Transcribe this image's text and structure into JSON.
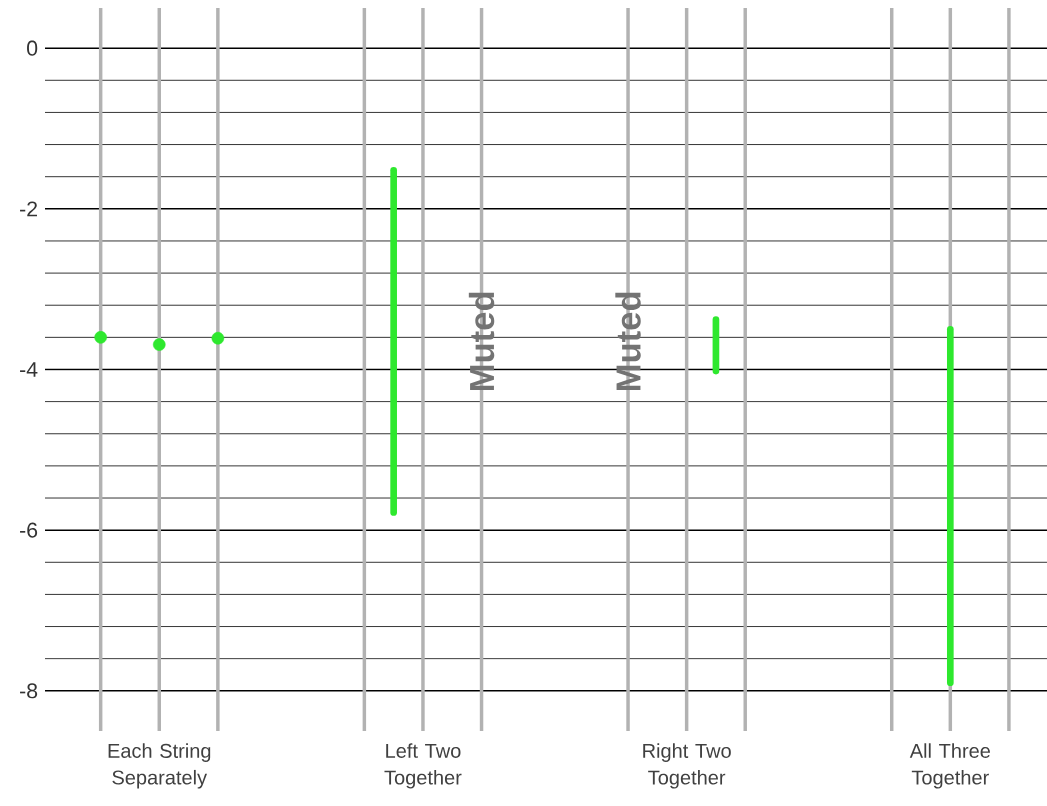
{
  "chart_data": {
    "type": "bar",
    "categories": [
      null,
      null,
      "Each String Separately",
      null,
      null,
      null,
      null,
      null,
      null,
      null,
      null,
      "Left Two Together",
      null,
      null,
      null,
      null,
      null,
      null,
      null,
      null,
      "Right Two Together",
      null,
      null,
      null,
      null,
      null,
      null,
      null,
      null,
      "All Three Together",
      null,
      null
    ],
    "ylim": [
      -8.5,
      0.5
    ],
    "yticks": [
      0,
      {
        "value": -0.4,
        "label": null
      },
      {
        "value": -0.8,
        "label": null
      },
      {
        "value": -1.2,
        "label": null
      },
      {
        "value": -1.6,
        "label": null
      },
      -2,
      {
        "value": -2.4,
        "label": null
      },
      {
        "value": -2.8,
        "label": null
      },
      {
        "value": -3.2,
        "label": null
      },
      {
        "value": -3.6,
        "label": null
      },
      -4,
      {
        "value": -4.4,
        "label": null
      },
      {
        "value": -4.8,
        "label": null
      },
      {
        "value": -5.2,
        "label": null
      },
      {
        "value": -5.6,
        "label": null
      },
      -6,
      {
        "value": -6.4,
        "label": null
      },
      {
        "value": -6.8,
        "label": null
      },
      {
        "value": -7.2,
        "label": null
      },
      {
        "value": -7.6,
        "label": null
      },
      -8
    ],
    "grid": true,
    "series": [
      {
        "type": "scatter",
        "color": "#2ee82e",
        "marker": "circle",
        "values": [
          -3.6,
          null,
          -3.69,
          null,
          -3.61,
          null,
          null,
          null,
          null,
          null,
          null,
          null,
          null,
          null,
          null,
          null,
          null,
          null,
          null,
          null,
          null,
          null,
          null,
          null,
          null,
          null,
          null,
          null,
          null,
          null,
          null,
          null
        ]
      },
      {
        "color": "#2ee82e",
        "values": [
          null,
          null,
          null,
          null,
          null,
          null,
          null,
          null,
          null,
          null,
          4.26,
          null,
          null,
          null,
          null,
          null,
          null,
          null,
          null,
          null,
          null,
          0.64,
          null,
          null,
          null,
          null,
          null,
          null,
          null,
          4.4,
          null,
          null
        ],
        "base": [
          null,
          null,
          null,
          null,
          null,
          null,
          null,
          null,
          null,
          null,
          -5.78,
          null,
          null,
          null,
          null,
          null,
          null,
          null,
          null,
          null,
          null,
          -4.02,
          null,
          null,
          null,
          null,
          null,
          null,
          null,
          -7.9,
          null,
          null
        ]
      }
    ],
    "annotations": [
      "Muted",
      "Muted"
    ]
  }
}
